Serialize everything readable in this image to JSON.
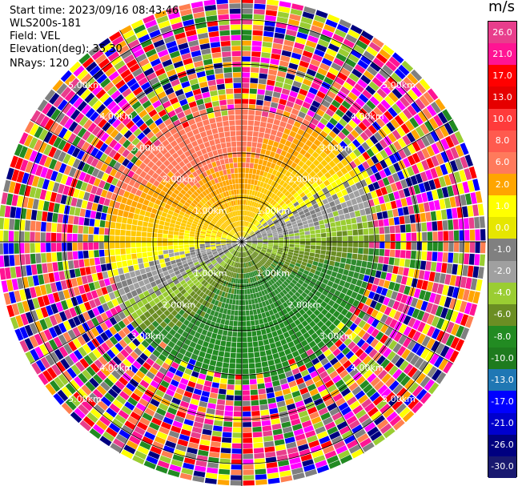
{
  "header": {
    "start_time": "Start time: 2023/09/16 08:43:46",
    "site": "WLS200s-181",
    "field": "Field: VEL",
    "elevation": "Elevation(deg): 35.30",
    "nrays": "NRays: 120"
  },
  "colorbar": {
    "unit": "m/s",
    "ticks": [
      "26.0",
      "21.0",
      "17.0",
      "13.0",
      "10.0",
      "8.0",
      "6.0",
      "2.0",
      "1.0",
      "0.0",
      "-1.0",
      "-2.0",
      "-4.0",
      "-6.0",
      "-8.0",
      "-10.0",
      "-13.0",
      "-17.0",
      "-21.0",
      "-26.0",
      "-30.0"
    ],
    "colors": [
      "#e83e8c",
      "#ff1493",
      "#ff0000",
      "#e60000",
      "#ff3b3b",
      "#ff5a4e",
      "#ff7a5c",
      "#ffa500",
      "#ffff00",
      "#e6e600",
      "#808080",
      "#a0a0a0",
      "#9acd32",
      "#6b8e23",
      "#228b22",
      "#1e7b1e",
      "#1f77b4",
      "#0000ff",
      "#0000cd",
      "#000080",
      "#191970"
    ]
  },
  "chart_data": {
    "type": "ppi",
    "field": "VEL",
    "nrays": 120,
    "elevation_deg": 35.3,
    "unit": "m/s",
    "range_rings_km": [
      1.0,
      2.0,
      3.0,
      4.0,
      5.0
    ],
    "ring_labels": [
      "1.00km",
      "2.00km",
      "3.00km",
      "4.00km",
      "5.00km"
    ],
    "max_range_km": 5.5,
    "noise_range_km": 3.0,
    "velocity_pattern": "positive (toward) in the north/northwest, near-zero grey band along the center, negative (away) to the south/southeast, noisy return beyond about 3 km"
  }
}
